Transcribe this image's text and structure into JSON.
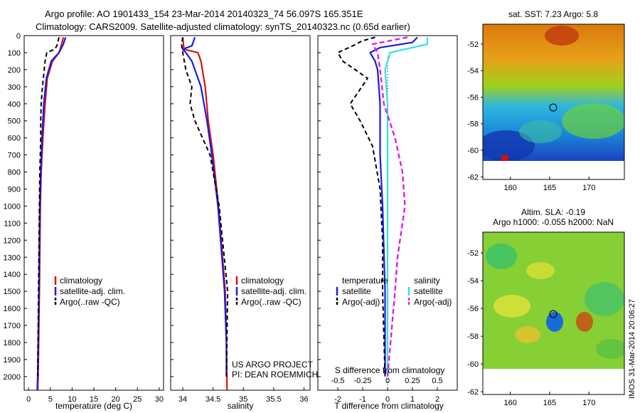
{
  "header": {
    "line1": "Argo profile: AO 1901433_154 23-Mar-2014 20140323_74 56.097S 165.351E",
    "line2": "Climatology: CARS2009. Satellite-adjusted climatology: synTS_20140323.nc (0.65d earlier)"
  },
  "colors": {
    "climatology": "#e01010",
    "satellite": "#1a1ae6",
    "argo": "#000000",
    "salinity_sat": "#33e0e6",
    "salinity_argo": "#e61ae6"
  },
  "depth_ticks": [
    0,
    100,
    200,
    300,
    400,
    500,
    600,
    700,
    800,
    900,
    1000,
    1100,
    1200,
    1300,
    1400,
    1500,
    1600,
    1700,
    1800,
    1900,
    2000
  ],
  "chart_data": [
    {
      "type": "line",
      "panel": "temperature",
      "xlabel": "temperature (deg C)",
      "xlim": [
        -1,
        31
      ],
      "ylim": [
        2080,
        0
      ],
      "xticks": [
        0,
        5,
        10,
        15,
        20,
        25,
        30
      ],
      "legend": [
        "climatology",
        "satellite-adj. clim.",
        "Argo(..raw -QC)"
      ],
      "series": [
        {
          "name": "climatology",
          "depth": [
            10,
            50,
            100,
            150,
            250,
            400,
            600,
            800,
            1000,
            1500,
            2000,
            2080
          ],
          "values": [
            8.0,
            7.6,
            7.0,
            5.5,
            4.3,
            3.8,
            3.3,
            2.9,
            2.7,
            2.5,
            2.2,
            2.1
          ]
        },
        {
          "name": "satellite-adj. clim.",
          "depth": [
            10,
            50,
            100,
            150,
            250,
            400,
            600,
            800,
            1000,
            1500,
            2000,
            2080
          ],
          "values": [
            8.5,
            8.0,
            7.0,
            5.2,
            4.1,
            3.5,
            3.1,
            2.8,
            2.6,
            2.4,
            2.1,
            2.0
          ]
        },
        {
          "name": "Argo(..raw -QC)",
          "depth": [
            10,
            30,
            60,
            80,
            100,
            150,
            200,
            300,
            400,
            500,
            600,
            800,
            1000,
            1500,
            2000
          ],
          "values": [
            7.0,
            6.8,
            6.5,
            6.0,
            4.2,
            3.8,
            3.6,
            3.2,
            2.9,
            2.8,
            2.8,
            2.6,
            2.5,
            2.3,
            2.1
          ]
        }
      ]
    },
    {
      "type": "line",
      "panel": "salinity",
      "xlabel": "salinity",
      "xlim": [
        33.8,
        36.1
      ],
      "ylim": [
        2080,
        0
      ],
      "xticks": [
        34,
        34.5,
        35,
        35.5,
        36
      ],
      "legend": [
        "climatology",
        "satellite-adj. clim.",
        "Argo(..raw -QC)"
      ],
      "series": [
        {
          "name": "climatology",
          "depth": [
            10,
            80,
            100,
            150,
            300,
            500,
            700,
            1000,
            1500,
            1800,
            2080
          ],
          "values": [
            34.0,
            34.02,
            34.25,
            34.3,
            34.37,
            34.42,
            34.5,
            34.59,
            34.7,
            34.72,
            34.73
          ]
        },
        {
          "name": "satellite-adj. clim.",
          "depth": [
            10,
            60,
            80,
            100,
            150,
            300,
            500,
            700,
            1000,
            1500,
            1800,
            2000
          ],
          "values": [
            34.2,
            34.15,
            34.0,
            34.05,
            34.15,
            34.3,
            34.4,
            34.48,
            34.58,
            34.69,
            34.72,
            34.72
          ]
        },
        {
          "name": "Argo(..raw -QC)",
          "depth": [
            10,
            50,
            100,
            200,
            300,
            400,
            500,
            700,
            1000,
            1500,
            2000
          ],
          "values": [
            34.0,
            33.98,
            34.0,
            34.05,
            34.15,
            34.12,
            34.2,
            34.45,
            34.6,
            34.74,
            34.72
          ]
        }
      ]
    },
    {
      "type": "line",
      "panel": "difference",
      "xlabel": "T difference from climatology",
      "xlabel_top": "S difference from climatology",
      "xlim": [
        -2.8,
        2.8
      ],
      "ylim": [
        2080,
        0
      ],
      "xticks": [
        -2,
        -1,
        0,
        1,
        2
      ],
      "top_xticks": [
        -0.5,
        -0.25,
        0,
        0.25,
        0.5
      ],
      "legend_temperature_title": "temperature",
      "legend_salinity_title": "salinity",
      "legend_temperature": [
        "satellite",
        "Argo(-adj)"
      ],
      "legend_salinity": [
        "satellite",
        "Argo(-adj)"
      ],
      "series": [
        {
          "name": "T satellite",
          "depth": [
            10,
            40,
            70,
            100,
            150,
            200,
            400,
            700,
            1000,
            1500,
            2000
          ],
          "values": [
            1.2,
            1.0,
            -0.3,
            -0.7,
            -0.5,
            -0.4,
            -0.3,
            -0.3,
            -0.2,
            -0.1,
            -0.1
          ]
        },
        {
          "name": "T Argo",
          "depth": [
            10,
            30,
            60,
            100,
            150,
            250,
            400,
            500,
            650,
            900,
            1200,
            1500,
            2000
          ],
          "values": [
            -0.5,
            -1.0,
            -1.4,
            -2.0,
            -1.8,
            -0.8,
            -1.5,
            -1.1,
            -0.6,
            -0.3,
            -0.2,
            -0.2,
            -0.1
          ]
        },
        {
          "name": "S satellite",
          "depth": [
            10,
            50,
            100,
            200,
            400,
            600,
            1000,
            1500,
            2000
          ],
          "values": [
            1.6,
            1.6,
            0.1,
            -0.1,
            0.0,
            0.0,
            0.0,
            0.0,
            0.0
          ]
        },
        {
          "name": "S Argo",
          "depth": [
            10,
            50,
            100,
            200,
            400,
            600,
            800,
            1000,
            1300,
            1500,
            2000
          ],
          "values": [
            0.8,
            -0.6,
            -0.4,
            -0.3,
            -0.15,
            0.3,
            0.6,
            0.7,
            0.4,
            0.3,
            0.0
          ]
        }
      ]
    }
  ],
  "annot": {
    "project": "US ARGO PROJECT",
    "pi": "PI: DEAN ROEMMICH"
  },
  "maps": {
    "top_title": "sat. SST: 7.23 Argo: 5.8",
    "bottom_title1": "Altim. SLA: -0.19",
    "bottom_title2": "Argo h1000: -0.055 h2000: NaN",
    "y_ticks": [
      -52,
      -54,
      -56,
      -58,
      -60,
      -62
    ],
    "x_ticks": [
      160,
      165,
      170
    ],
    "lon_range": [
      156.5,
      174.5
    ],
    "lat_range": [
      -62.2,
      -50.5
    ],
    "data_lat_range": [
      -60,
      -50.5
    ],
    "float_position": {
      "lon": 165.35,
      "lat": -56.1
    }
  },
  "footer": {
    "stamp": "IMOS 31-Mar-2014 20:06:27"
  }
}
